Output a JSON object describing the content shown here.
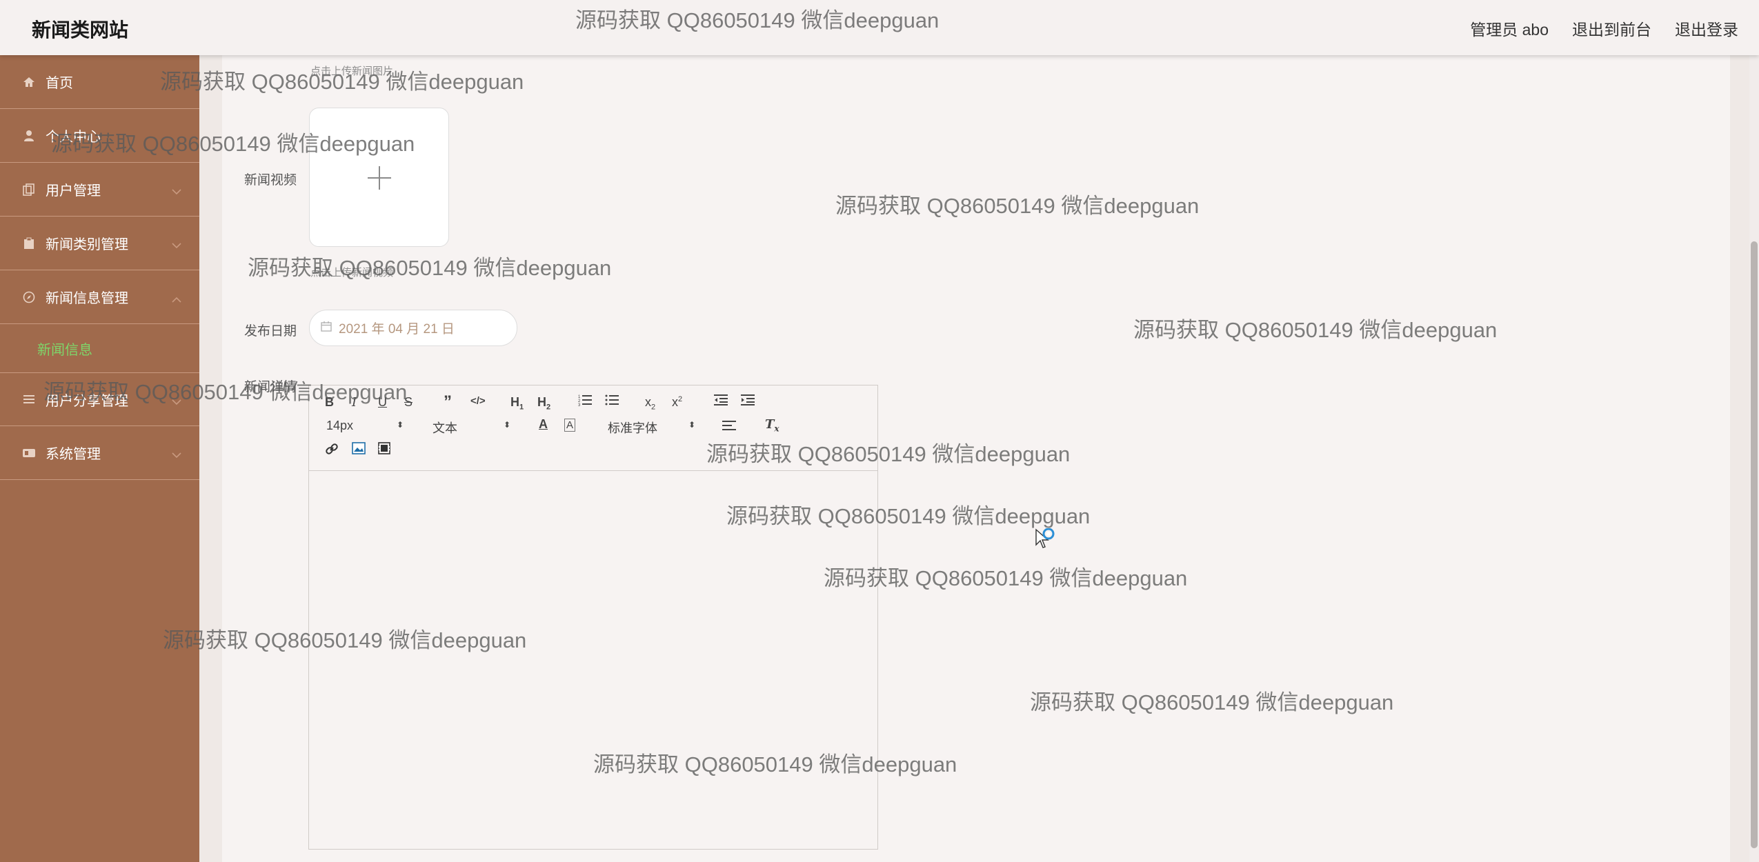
{
  "header": {
    "title": "新闻类网站",
    "admin_label": "管理员 abo",
    "to_frontend": "退出到前台",
    "logout": "退出登录"
  },
  "sidebar": {
    "items": [
      {
        "label": "首页",
        "icon": "home-icon"
      },
      {
        "label": "个人中心",
        "icon": "user-icon"
      },
      {
        "label": "用户管理",
        "icon": "copy-icon"
      },
      {
        "label": "新闻类别管理",
        "icon": "clipboard-icon"
      },
      {
        "label": "新闻信息管理",
        "icon": "compass-icon"
      },
      {
        "label": "用户分享管理",
        "icon": "list-icon"
      },
      {
        "label": "系统管理",
        "icon": "dashboard-icon"
      }
    ],
    "active_sub": "新闻信息"
  },
  "form": {
    "image_hint": "点击上传新闻图片",
    "video_label": "新闻视频",
    "video_hint": "点击上传新闻视频",
    "date_label": "发布日期",
    "date_value": "2021 年 04 月 21 日",
    "detail_label": "新闻详情"
  },
  "editor": {
    "font_size": "14px",
    "text_style": "文本",
    "font_family": "标准字体"
  },
  "watermark_text": "源码获取 QQ86050149 微信deepguan",
  "colors": {
    "sidebar": "#a06a4c",
    "active_sub": "#7ed66a",
    "header": "#f5f1f0"
  }
}
